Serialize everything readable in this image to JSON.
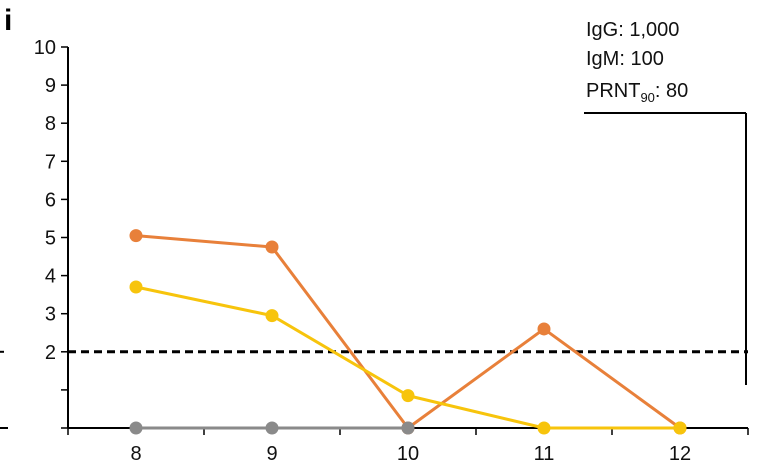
{
  "panel_label": "i",
  "chart_data": {
    "type": "line",
    "title": "",
    "xlabel": "",
    "ylabel": "",
    "x": [
      8,
      9,
      10,
      11,
      12
    ],
    "x_ticks": [
      "8",
      "9",
      "10",
      "11",
      "12"
    ],
    "y_ticks": [
      "2",
      "3",
      "4",
      "5",
      "6",
      "7",
      "8",
      "9",
      "10"
    ],
    "ylim": [
      0,
      10
    ],
    "threshold": 2,
    "series": [
      {
        "color": "#E8803A",
        "values": [
          5.05,
          4.75,
          0,
          2.6,
          0
        ]
      },
      {
        "color": "#F7C40C",
        "values": [
          3.7,
          2.95,
          0.85,
          0,
          0
        ]
      },
      {
        "color": "#8A8A8A",
        "values": [
          0,
          0,
          0,
          null,
          null
        ]
      }
    ]
  },
  "annotation": {
    "igg": "IgG: 1,000",
    "igm": "IgM: 100",
    "prnt_prefix": "PRNT",
    "prnt_sub": "90",
    "prnt_suffix": ": 80"
  }
}
